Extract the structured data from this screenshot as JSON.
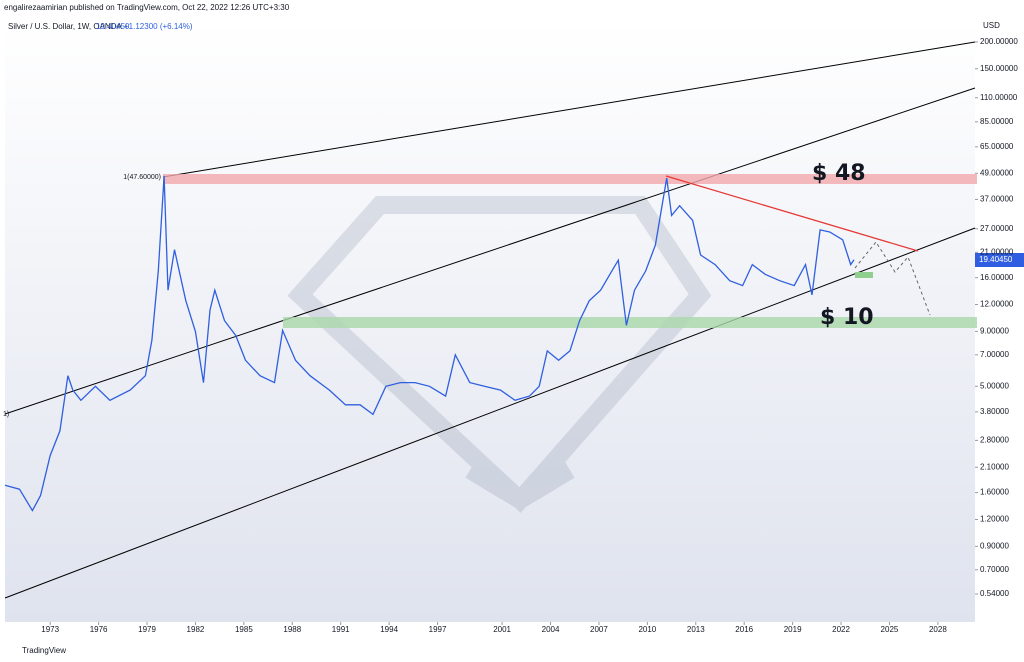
{
  "header": {
    "publisher": "engalirezaamirian published on TradingView.com, Oct 22, 2022 12:26 UTC+3:30",
    "footer": "TradingView"
  },
  "chart_data": {
    "type": "line",
    "title": "Silver / U.S. Dollar, 1W, OANDA",
    "price_label": "19.40450",
    "change_label": "+1.12300 (+6.14%)",
    "currency": "USD",
    "annotations": {
      "high_label": "1(47.60000)",
      "left_label": "1)",
      "resistance": "$ 48",
      "support": "$ 10"
    },
    "log_scale": true,
    "xlim": [
      1970.2,
      2030.3
    ],
    "ylim": [
      0.4,
      253
    ],
    "xticks": [
      1973,
      1976,
      1979,
      1982,
      1985,
      1988,
      1991,
      1994,
      1997,
      2001,
      2004,
      2007,
      2010,
      2013,
      2016,
      2019,
      2022,
      2025,
      2028
    ],
    "yticks": [
      {
        "value": 200,
        "label": "200.00000"
      },
      {
        "value": 150,
        "label": "150.00000"
      },
      {
        "value": 110,
        "label": "110.00000"
      },
      {
        "value": 85,
        "label": "85.00000"
      },
      {
        "value": 65,
        "label": "65.00000"
      },
      {
        "value": 49,
        "label": "49.00000"
      },
      {
        "value": 37,
        "label": "37.00000"
      },
      {
        "value": 27,
        "label": "27.00000"
      },
      {
        "value": 21,
        "label": "21.00000"
      },
      {
        "value": 16,
        "label": "16.00000"
      },
      {
        "value": 12,
        "label": "12.00000"
      },
      {
        "value": 9,
        "label": "9.00000"
      },
      {
        "value": 7,
        "label": "7.00000"
      },
      {
        "value": 5,
        "label": "5.00000"
      },
      {
        "value": 3.8,
        "label": "3.80000"
      },
      {
        "value": 2.8,
        "label": "2.80000"
      },
      {
        "value": 2.1,
        "label": "2.10000"
      },
      {
        "value": 1.6,
        "label": "1.60000"
      },
      {
        "value": 1.2,
        "label": "1.20000"
      },
      {
        "value": 0.9,
        "label": "0.90000"
      },
      {
        "value": 0.7,
        "label": "0.70000"
      },
      {
        "value": 0.54,
        "label": "0.54000"
      }
    ],
    "series": [
      {
        "name": "Silver / U.S. Dollar",
        "color": "#2f5fe0",
        "x": [
          1970.2,
          1971.1,
          1971.9,
          1972.4,
          1973.0,
          1973.6,
          1974.1,
          1974.4,
          1974.9,
          1975.8,
          1976.7,
          1977.95,
          1978.9,
          1979.3,
          1979.7,
          1980.06,
          1980.3,
          1980.7,
          1981.4,
          1982.0,
          1982.5,
          1982.9,
          1983.2,
          1983.8,
          1984.5,
          1985.1,
          1986.0,
          1986.9,
          1987.4,
          1988.2,
          1989.1,
          1990.3,
          1991.3,
          1992.2,
          1993.0,
          1993.8,
          1994.7,
          1995.6,
          1996.5,
          1997.5,
          1998.1,
          1999.0,
          1999.9,
          2000.9,
          2001.8,
          2002.7,
          2003.3,
          2003.8,
          2004.5,
          2005.2,
          2005.8,
          2006.4,
          2007.1,
          2007.8,
          2008.2,
          2008.7,
          2009.2,
          2009.9,
          2010.5,
          2011.2,
          2011.5,
          2012.0,
          2012.8,
          2013.3,
          2014.2,
          2015.1,
          2015.9,
          2016.5,
          2017.3,
          2018.2,
          2019.1,
          2019.8,
          2020.2,
          2020.7,
          2021.3,
          2022.1,
          2022.6,
          2022.8
        ],
        "values": [
          1.73,
          1.66,
          1.32,
          1.55,
          2.38,
          3.1,
          5.6,
          4.8,
          4.3,
          5.0,
          4.3,
          4.8,
          5.6,
          8.2,
          17.2,
          47.6,
          14.0,
          21.6,
          12.5,
          9.0,
          5.2,
          11.3,
          14.0,
          10.1,
          8.6,
          6.6,
          5.6,
          5.2,
          9.1,
          6.6,
          5.6,
          4.8,
          4.1,
          4.1,
          3.7,
          5.0,
          5.2,
          5.2,
          5.0,
          4.5,
          7.0,
          5.2,
          5.0,
          4.8,
          4.3,
          4.5,
          5.0,
          7.3,
          6.6,
          7.3,
          10.1,
          12.5,
          14.0,
          17.2,
          19.3,
          9.6,
          14.0,
          17.2,
          22.7,
          46.5,
          31.2,
          34.6,
          29.6,
          20.4,
          18.4,
          15.5,
          14.7,
          18.4,
          16.6,
          15.5,
          14.7,
          18.4,
          13.3,
          26.7,
          26.1,
          24.0,
          18.4,
          19.4
        ]
      }
    ]
  }
}
